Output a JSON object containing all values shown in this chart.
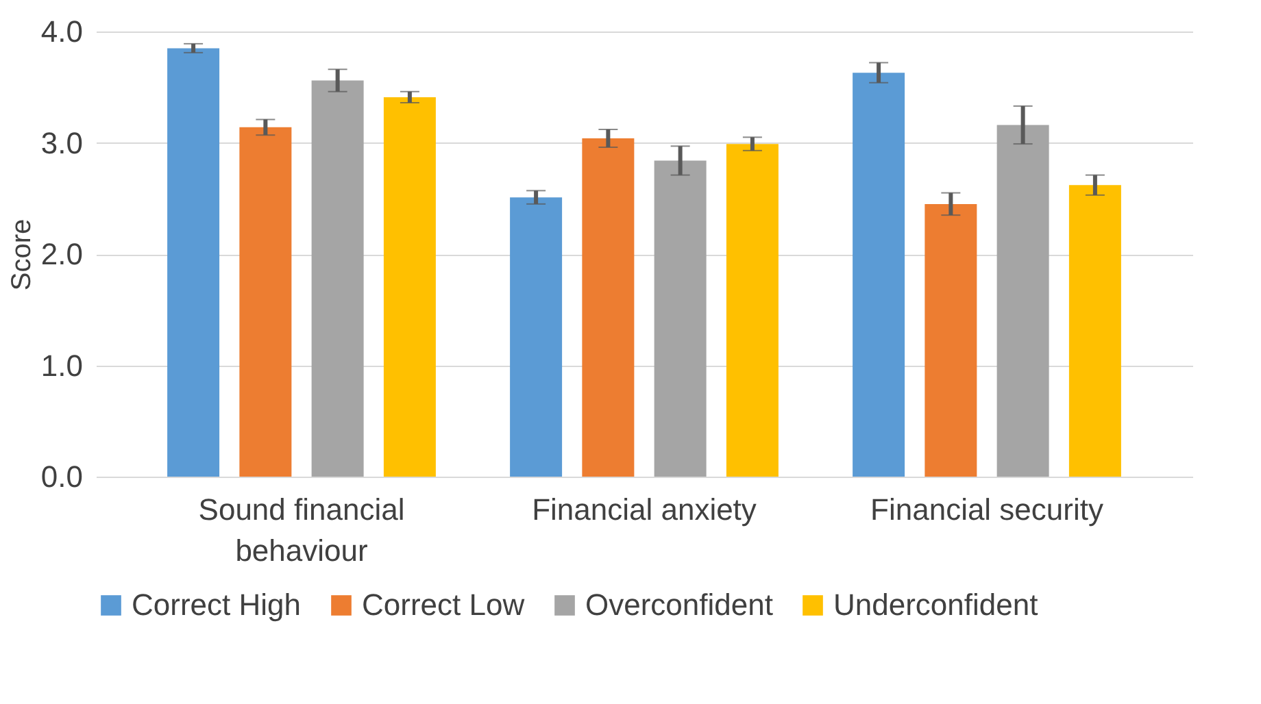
{
  "chart_data": {
    "type": "bar",
    "ylabel": "Score",
    "categories": [
      "Sound financial behaviour",
      "Financial anxiety",
      "Financial security"
    ],
    "series": [
      {
        "name": "Correct High",
        "color": "#5b9bd5",
        "values": [
          3.85,
          2.51,
          3.63
        ],
        "errors": [
          0.04,
          0.06,
          0.09
        ]
      },
      {
        "name": "Correct Low",
        "color": "#ed7d31",
        "values": [
          3.14,
          3.04,
          2.45
        ],
        "errors": [
          0.07,
          0.08,
          0.1
        ]
      },
      {
        "name": "Overconfident",
        "color": "#a5a5a5",
        "values": [
          3.56,
          2.84,
          3.16
        ],
        "errors": [
          0.1,
          0.13,
          0.17
        ]
      },
      {
        "name": "Underconfident",
        "color": "#ffc000",
        "values": [
          3.41,
          2.99,
          2.62
        ],
        "errors": [
          0.05,
          0.06,
          0.09
        ]
      }
    ],
    "ylim": [
      0,
      4.0
    ],
    "yticks": [
      {
        "value": 0,
        "label": "0.0"
      },
      {
        "value": 1,
        "label": "1.0"
      },
      {
        "value": 2,
        "label": "2.0"
      },
      {
        "value": 3,
        "label": "3.0"
      },
      {
        "value": 4,
        "label": "4.0"
      }
    ],
    "grid": "y",
    "legend": "bottom"
  }
}
